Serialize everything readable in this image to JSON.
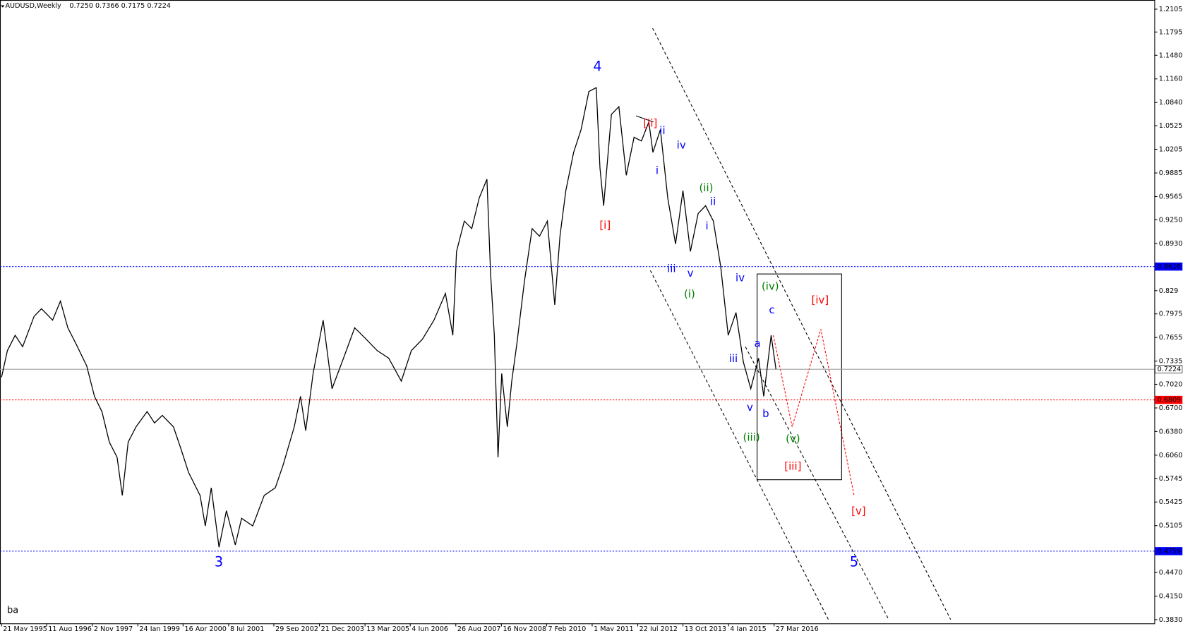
{
  "chart_data": {
    "type": "line",
    "title": "AUDUSD,Weekly",
    "subtitle": "0.7250 0.7366 0.7175 0.7224",
    "xlim": [
      1995.35,
      2026.5
    ],
    "ylim": [
      0.378,
      1.2229
    ],
    "xticks": [
      {
        "value": 1995.39,
        "label": "21 May 1995"
      },
      {
        "value": 1996.61,
        "label": "11 Aug 1996"
      },
      {
        "value": 1997.84,
        "label": "2 Nov 1997"
      },
      {
        "value": 1999.07,
        "label": "24 Jan 1999"
      },
      {
        "value": 2000.29,
        "label": "16 Apr 2000"
      },
      {
        "value": 2001.52,
        "label": "8 Jul 2001"
      },
      {
        "value": 2002.74,
        "label": "29 Sep 2002"
      },
      {
        "value": 2003.97,
        "label": "21 Dec 2003"
      },
      {
        "value": 2005.2,
        "label": "13 Mar 2005"
      },
      {
        "value": 2006.42,
        "label": "4 Jun 2006"
      },
      {
        "value": 2007.65,
        "label": "26 Aug 2007"
      },
      {
        "value": 2008.88,
        "label": "16 Nov 2008"
      },
      {
        "value": 2010.1,
        "label": "7 Feb 2010"
      },
      {
        "value": 2011.33,
        "label": "1 May 2011"
      },
      {
        "value": 2012.56,
        "label": "22 Jul 2012"
      },
      {
        "value": 2013.78,
        "label": "13 Oct 2013"
      },
      {
        "value": 2015.01,
        "label": "4 Jan 2015"
      },
      {
        "value": 2016.24,
        "label": "27 Mar 2016"
      }
    ],
    "yticks": [
      1.2105,
      1.1795,
      {
        "value": 1.148,
        "label": "1.1480"
      },
      {
        "value": 1.116,
        "label": "1.1160"
      },
      {
        "value": 1.084,
        "label": "1.0840"
      },
      1.0525,
      1.0205,
      0.9885,
      0.9565,
      {
        "value": 0.925,
        "label": "0.9250"
      },
      {
        "value": 0.893,
        "label": "0.8930"
      },
      0.829,
      0.7975,
      0.7655,
      0.7335,
      {
        "value": 0.702,
        "label": "0.7020"
      },
      {
        "value": 0.67,
        "label": "0.6700"
      },
      {
        "value": 0.638,
        "label": "0.6380"
      },
      {
        "value": 0.606,
        "label": "0.6060"
      },
      0.5745,
      0.5425,
      0.5105,
      {
        "value": 0.447,
        "label": "0.4470"
      },
      {
        "value": 0.415,
        "label": "0.4150"
      },
      {
        "value": 0.383,
        "label": "0.3830"
      }
    ],
    "levels": [
      {
        "value": 0.8616,
        "color": "#0000ff"
      },
      {
        "value": 0.7224,
        "color": "#a0a0a0"
      },
      {
        "value": 0.6809,
        "color": "#ff0000"
      },
      {
        "value": 0.4759,
        "color": "#0000ff"
      }
    ],
    "series": [
      {
        "name": "AUDUSD",
        "color": "#000000",
        "x": [
          1995.39,
          1995.55,
          1995.76,
          1995.96,
          1996.27,
          1996.47,
          1996.77,
          1996.98,
          1997.18,
          1997.39,
          1997.69,
          1997.9,
          1998.1,
          1998.3,
          1998.51,
          1998.65,
          1998.81,
          1999.02,
          1999.32,
          1999.52,
          1999.73,
          2000.03,
          2000.24,
          2000.44,
          2000.75,
          2000.89,
          2001.05,
          2001.26,
          2001.46,
          2001.7,
          2001.87,
          2002.17,
          2002.48,
          2002.78,
          2002.99,
          2003.29,
          2003.46,
          2003.6,
          2003.8,
          2004.07,
          2004.31,
          2004.62,
          2004.92,
          2005.23,
          2005.53,
          2005.84,
          2006.18,
          2006.45,
          2006.75,
          2007.06,
          2007.37,
          2007.57,
          2007.67,
          2007.88,
          2008.08,
          2008.28,
          2008.49,
          2008.59,
          2008.69,
          2008.79,
          2008.89,
          2009.04,
          2009.16,
          2009.3,
          2009.5,
          2009.71,
          2009.91,
          2010.12,
          2010.32,
          2010.46,
          2010.62,
          2010.83,
          2011.03,
          2011.24,
          2011.44,
          2011.54,
          2011.64,
          2011.85,
          2012.05,
          2012.25,
          2012.46,
          2012.66,
          2012.86,
          2012.97,
          2013.17,
          2013.37,
          2013.58,
          2013.78,
          2013.98,
          2014.19,
          2014.39,
          2014.6,
          2014.8,
          2015.0,
          2015.21,
          2015.41,
          2015.61,
          2015.82,
          2015.96,
          2016.16,
          2016.29
        ],
        "values": [
          0.7115,
          0.7477,
          0.7684,
          0.7529,
          0.7942,
          0.8045,
          0.789,
          0.8148,
          0.7787,
          0.758,
          0.727,
          0.6857,
          0.665,
          0.6237,
          0.6031,
          0.5514,
          0.6237,
          0.6444,
          0.665,
          0.6496,
          0.6599,
          0.6444,
          0.6134,
          0.5824,
          0.5514,
          0.5101,
          0.5617,
          0.4812,
          0.5308,
          0.4843,
          0.5204,
          0.5101,
          0.5514,
          0.5617,
          0.5927,
          0.6444,
          0.6857,
          0.6392,
          0.7167,
          0.789,
          0.696,
          0.7374,
          0.7787,
          0.7632,
          0.7477,
          0.7374,
          0.7064,
          0.7477,
          0.7632,
          0.789,
          0.8252,
          0.7684,
          0.882,
          0.9233,
          0.913,
          0.9543,
          0.9801,
          0.851,
          0.7684,
          0.6031,
          0.7167,
          0.6444,
          0.7064,
          0.758,
          0.8407,
          0.913,
          0.9027,
          0.9233,
          0.8097,
          0.9027,
          0.9646,
          1.0163,
          1.0473,
          1.0989,
          1.1041,
          0.9956,
          0.944,
          1.0679,
          1.0783,
          0.9853,
          1.0369,
          1.0318,
          1.0576,
          1.0163,
          1.0473,
          0.9543,
          0.8923,
          0.9646,
          0.882,
          0.9336,
          0.944,
          0.9233,
          0.8613,
          0.7684,
          0.7993,
          0.7322,
          0.696,
          0.7374,
          0.6857,
          0.7684,
          0.7224
        ]
      }
    ],
    "annotations": [
      {
        "text": "4",
        "color": "#0000ff"
      },
      {
        "text": "3",
        "color": "#0000ff"
      },
      {
        "text": "5",
        "color": "#0000ff"
      },
      {
        "text": "[i]",
        "color": "#ff0000"
      },
      {
        "text": "[ii]",
        "color": "#ff0000"
      },
      {
        "text": "ii",
        "color": "#0000ff"
      },
      {
        "text": "i",
        "color": "#0000ff"
      },
      {
        "text": "iv",
        "color": "#0000ff"
      },
      {
        "text": "(ii)",
        "color": "#008000"
      },
      {
        "text": "ii",
        "color": "#0000ff"
      },
      {
        "text": "i",
        "color": "#0000ff"
      },
      {
        "text": "iii",
        "color": "#0000ff"
      },
      {
        "text": "v",
        "color": "#0000ff"
      },
      {
        "text": "(i)",
        "color": "#008000"
      },
      {
        "text": "iv",
        "color": "#0000ff"
      },
      {
        "text": "(iv)",
        "color": "#008000"
      },
      {
        "text": "[iv]",
        "color": "#ff0000"
      },
      {
        "text": "c",
        "color": "#0000ff"
      },
      {
        "text": "a",
        "color": "#0000ff"
      },
      {
        "text": "iii",
        "color": "#0000ff"
      },
      {
        "text": "v",
        "color": "#0000ff"
      },
      {
        "text": "b",
        "color": "#0000ff"
      },
      {
        "text": "(iii)",
        "color": "#008000"
      },
      {
        "text": "(v)",
        "color": "#008000"
      },
      {
        "text": "[iii]",
        "color": "#ff0000"
      },
      {
        "text": "[v]",
        "color": "#ff0000"
      },
      {
        "text": "ba",
        "color": "#000000"
      }
    ]
  }
}
